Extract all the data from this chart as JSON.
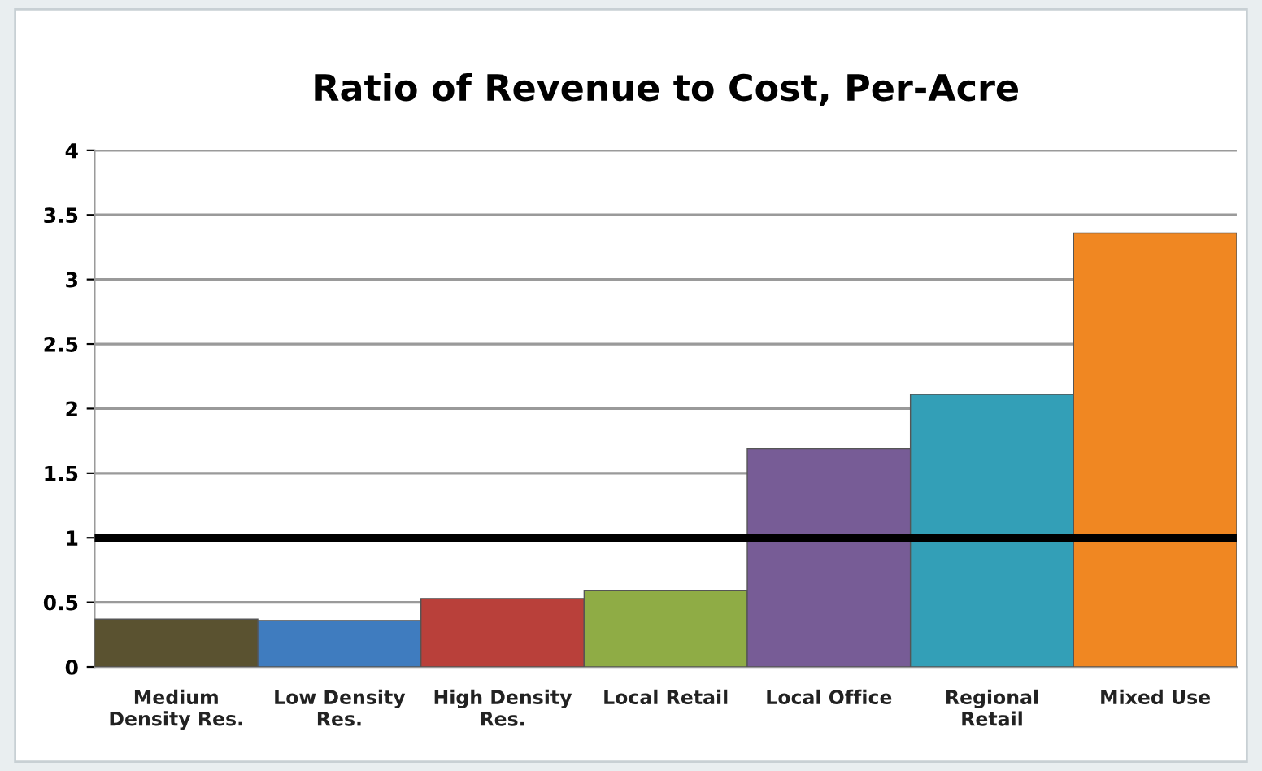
{
  "chart_data": {
    "type": "bar",
    "title": "Ratio of Revenue to Cost, Per-Acre",
    "categories": [
      "Medium\nDensity Res.",
      "Low Density\nRes.",
      "High Density\nRes.",
      "Local Retail",
      "Local Office",
      "Regional\nRetail",
      "Mixed Use"
    ],
    "values": [
      0.37,
      0.36,
      0.53,
      0.59,
      1.69,
      2.11,
      3.36
    ],
    "colors": [
      "#5a5230",
      "#3f7cbf",
      "#b9403a",
      "#8fac45",
      "#775c96",
      "#339fb7",
      "#f08722"
    ],
    "ylim": [
      0,
      4
    ],
    "yticks": [
      0,
      0.5,
      1,
      1.5,
      2,
      2.5,
      3,
      3.5,
      4
    ],
    "grid": "y",
    "ref_lines": [
      {
        "axis": "y",
        "value": 1,
        "color": "#000000"
      }
    ]
  }
}
